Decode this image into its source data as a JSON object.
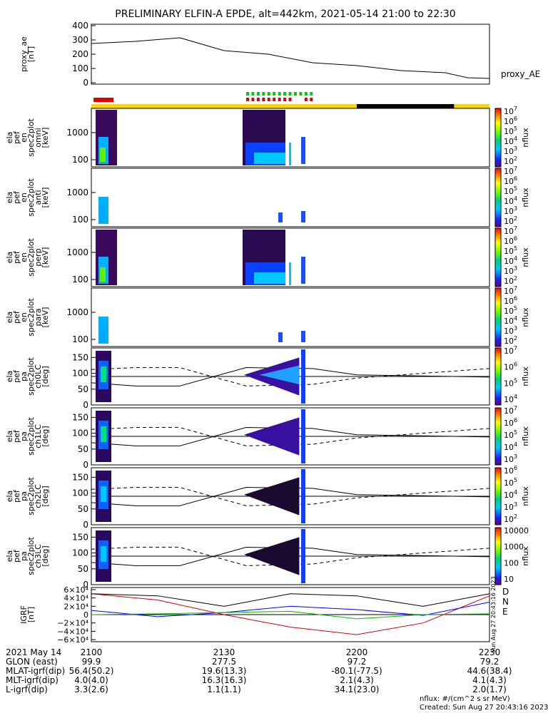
{
  "title": "PRELIMINARY ELFIN-A EPDE, alt=442km, 2021-05-14 21:00 to 22:30",
  "colors": {
    "yellow": "#f7d417",
    "black": "#000000",
    "red": "#e00000",
    "green": "#00d000",
    "line_D": "#cc0000",
    "line_N": "#0000ff",
    "line_E": "#00bb00"
  },
  "chart_data": [
    {
      "type": "line",
      "name": "proxy_ae",
      "ylabel_lines": [
        "proxy_ae",
        "[nT]"
      ],
      "legend": "proxy_AE",
      "ylim": [
        -10,
        410
      ],
      "yticks": [
        "400",
        "300",
        "200",
        "100",
        "0"
      ],
      "x_minutes": [
        0,
        10,
        20,
        30,
        40,
        50,
        60,
        70,
        80,
        85,
        90
      ],
      "values": [
        275,
        290,
        315,
        225,
        200,
        140,
        120,
        85,
        70,
        35,
        30
      ]
    },
    {
      "type": "bar",
      "name": "status-bars",
      "segments": [
        {
          "from_min": 0,
          "to_min": 60,
          "color": "yellow"
        },
        {
          "from_min": 60,
          "to_min": 82,
          "color": "black"
        },
        {
          "from_min": 82,
          "to_min": 90,
          "color": "yellow"
        }
      ],
      "red_bar_min": [
        0.5,
        5
      ],
      "dotted_green_min": [
        35,
        49.5
      ],
      "dotted_red_min": [
        35,
        49.5
      ]
    },
    {
      "type": "heatmap",
      "name": "en-omni",
      "ylabel_lines": [
        "ela",
        "pef",
        "en",
        "spec2plot",
        "omni",
        "[keV]"
      ],
      "yticks": [
        "1000",
        "100"
      ],
      "cbar_label": "nflux",
      "cbar_ticks": [
        "10⁷",
        "10⁶",
        "10⁵",
        "10⁴",
        "10³",
        "10²"
      ],
      "cbar_exp": [
        7,
        6,
        5,
        4,
        3,
        2
      ]
    },
    {
      "type": "heatmap",
      "name": "en-anti",
      "ylabel_lines": [
        "ela",
        "pef",
        "en",
        "spec2plot",
        "anti",
        "[keV]"
      ],
      "yticks": [
        "1000",
        "100"
      ],
      "cbar_label": "nflux",
      "cbar_exp": [
        7,
        6,
        5,
        4,
        3,
        2
      ]
    },
    {
      "type": "heatmap",
      "name": "en-perp",
      "ylabel_lines": [
        "ela",
        "pef",
        "en",
        "spec2plot",
        "perp",
        "[keV]"
      ],
      "yticks": [
        "1000",
        "100"
      ],
      "cbar_label": "nflux",
      "cbar_exp": [
        7,
        6,
        5,
        4,
        3,
        2
      ]
    },
    {
      "type": "heatmap",
      "name": "en-para",
      "ylabel_lines": [
        "ela",
        "pef",
        "en",
        "spec2plot",
        "para",
        "[keV]"
      ],
      "yticks": [
        "1000",
        "100"
      ],
      "cbar_label": "nflux",
      "cbar_exp": [
        7,
        6,
        5,
        4,
        3,
        2
      ]
    },
    {
      "type": "heatmap",
      "name": "pa-ch0LC",
      "ylabel_lines": [
        "ela",
        "pef",
        "pa",
        "spec2plot",
        "ch0LC",
        "[deg]"
      ],
      "yticks": [
        "150",
        "100",
        "50",
        "0"
      ],
      "cbar_label": "nflux",
      "cbar_exp": [
        7,
        6,
        5,
        4
      ]
    },
    {
      "type": "heatmap",
      "name": "pa-ch1LC",
      "ylabel_lines": [
        "ela",
        "pef",
        "pa",
        "spec2plot",
        "ch1LC",
        "[deg]"
      ],
      "yticks": [
        "150",
        "100",
        "50",
        "0"
      ],
      "cbar_label": "nflux",
      "cbar_exp": [
        7,
        6,
        5,
        4,
        3
      ]
    },
    {
      "type": "heatmap",
      "name": "pa-ch2LC",
      "ylabel_lines": [
        "ela",
        "pef",
        "pa",
        "spec2plot",
        "ch2LC",
        "[deg]"
      ],
      "yticks": [
        "150",
        "100",
        "50",
        "0"
      ],
      "cbar_label": "nflux",
      "cbar_exp": [
        6,
        5,
        4,
        3,
        2
      ]
    },
    {
      "type": "heatmap",
      "name": "pa-ch3LC",
      "ylabel_lines": [
        "ela",
        "pef",
        "pa",
        "spec2plot",
        "ch3LC",
        "[deg]"
      ],
      "yticks": [
        "150",
        "100",
        "50",
        "0"
      ],
      "cbar_label": "nflux",
      "cbar_plain": [
        "10000",
        "1000",
        "100",
        "10"
      ]
    },
    {
      "type": "line",
      "name": "IGRF",
      "ylabel_lines": [
        "IGRF",
        "[nT]"
      ],
      "ylim": [
        -6.5,
        6.5
      ],
      "yticks": [
        "6×10⁴",
        "4×10⁴",
        "2×10⁴",
        "0",
        "−2×10⁴",
        "−4×10⁴",
        "−6×10⁴"
      ],
      "legend": [
        "D",
        "N",
        "E"
      ],
      "x_minutes": [
        0,
        15,
        30,
        45,
        60,
        75,
        90
      ],
      "series": [
        {
          "name": "D",
          "values": [
            5,
            3.5,
            0,
            -3,
            -4.8,
            -2,
            4.5
          ]
        },
        {
          "name": "N",
          "values": [
            1,
            -0.5,
            0.5,
            2,
            1.2,
            -0.2,
            3
          ]
        },
        {
          "name": "E",
          "values": [
            0,
            0.2,
            0.5,
            0.8,
            -1,
            0,
            0.2
          ]
        }
      ],
      "vertical_note": "Sun Aug 27 20:43:16 2023"
    }
  ],
  "xaxis": {
    "labels": [
      "2021 May 14",
      "GLON (east)",
      "MLAT-igrf(dip)",
      "MLT-igrf(dip)",
      "L-igrf(dip)"
    ],
    "columns": [
      {
        "time": "2100",
        "vals": [
          "99.9",
          "56.4(50.2)",
          "4.0(4.0)",
          "3.3(2.6)"
        ]
      },
      {
        "time": "2130",
        "vals": [
          "277.5",
          "19.6(13.3)",
          "16.3(16.3)",
          "1.1(1.1)"
        ]
      },
      {
        "time": "2200",
        "vals": [
          "97.2",
          "-80.1(-77.5)",
          "2.1(4.3)",
          "34.1(23.0)"
        ]
      },
      {
        "time": "2230",
        "vals": [
          "79.2",
          "44.6(38.4)",
          "4.1(4.3)",
          "2.0(1.7)"
        ]
      }
    ]
  },
  "footer": {
    "units": "nflux: #/(cm^2 s sr MeV)",
    "created": "Created: Sun Aug 27 20:43:16 2023"
  }
}
